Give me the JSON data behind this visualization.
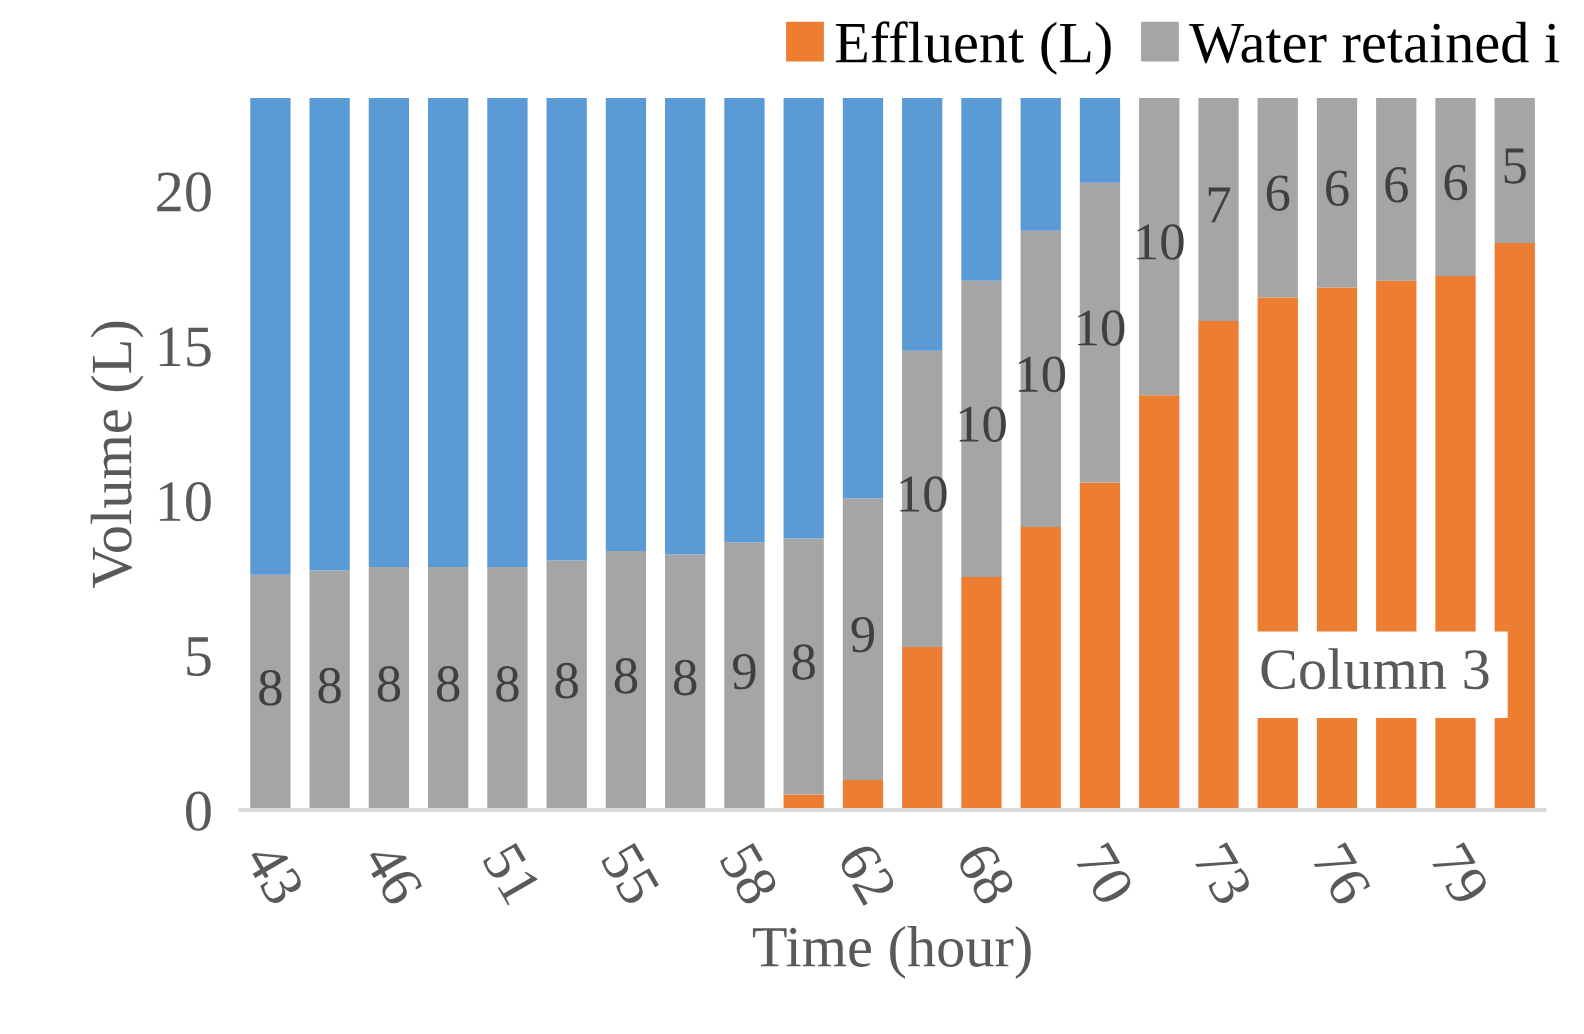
{
  "chart_data": {
    "type": "bar",
    "stacked": true,
    "xlabel": "Time (hour)",
    "ylabel": "Volume (L)",
    "categories": [
      "43",
      null,
      "46",
      null,
      "51",
      null,
      "55",
      null,
      "58",
      null,
      "62",
      null,
      "68",
      null,
      "70",
      null,
      "73",
      null,
      "76",
      null,
      "79",
      null
    ],
    "series": [
      {
        "name": "Effluent (L)",
        "color": "#ed7d31",
        "values": [
          null,
          null,
          null,
          null,
          null,
          null,
          null,
          null,
          null,
          0.5,
          0.97,
          5.27,
          7.53,
          9.14,
          10.58,
          13.4,
          15.8,
          16.56,
          16.88,
          17.1,
          17.25,
          18.32
        ]
      },
      {
        "name": "Water retained i",
        "color": "#a5a5a5",
        "values": [
          7.6,
          7.74,
          7.85,
          7.85,
          7.85,
          8.06,
          8.37,
          8.26,
          8.65,
          8.27,
          9.1,
          9.57,
          9.57,
          9.57,
          9.68,
          9.6,
          7.2,
          6.44,
          6.12,
          5.9,
          5.75,
          4.68
        ],
        "value_labels": [
          "8",
          "8",
          "8",
          "8",
          "8",
          "8",
          "8",
          "8",
          "9",
          "8",
          "9",
          "10",
          "10",
          "10",
          "10",
          "10",
          "7",
          "6",
          "6",
          "6",
          "6",
          "5"
        ]
      },
      {
        "color": "#5b9bd5",
        "values": [
          15.4,
          15.26,
          15.15,
          15.15,
          15.15,
          14.94,
          14.63,
          14.74,
          14.35,
          14.23,
          12.93,
          8.16,
          5.9,
          4.29,
          2.74,
          null,
          null,
          null,
          null,
          null,
          null,
          null
        ]
      }
    ],
    "ylim": [
      0,
      23
    ],
    "yticks": [
      0,
      5,
      10,
      15,
      20
    ],
    "grid": false,
    "legend": "top right",
    "annotations": [
      "Column 3"
    ]
  }
}
